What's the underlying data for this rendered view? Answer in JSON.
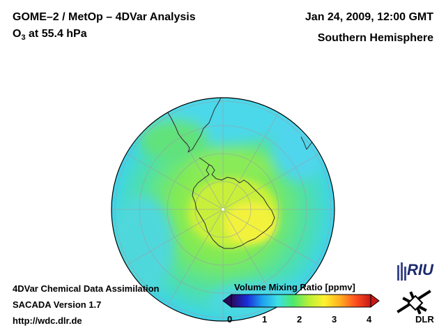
{
  "header": {
    "title": "GOME–2 / MetOp – 4DVar Analysis",
    "subtitle_species": "O",
    "subtitle_subscript": "3",
    "subtitle_level": " at 55.4 hPa",
    "datetime": "Jan 24, 2009, 12:00 GMT",
    "region": "Southern Hemisphere"
  },
  "footer": {
    "line1": "4DVar Chemical Data Assimilation",
    "line2": "SACADA Version 1.7",
    "line3": "http://wdc.dlr.de"
  },
  "colorbar": {
    "title": "Volume Mixing Ratio [ppmv]",
    "min": 0,
    "max": 4,
    "ticks": [
      "0",
      "1",
      "2",
      "3",
      "4"
    ],
    "stops": [
      "#2a0a5e",
      "#1a2cd8",
      "#1fa0f0",
      "#3de0e6",
      "#4de86a",
      "#b9ef38",
      "#fff22e",
      "#ffb020",
      "#ff5020",
      "#c81818"
    ]
  },
  "logos": {
    "riu": "RIU",
    "dlr": "DLR"
  },
  "colors": {
    "ocean_low": "#4dd6ec",
    "mid_green": "#5be86a",
    "high_yellow": "#eaf23a",
    "coast": "#2a2a2a"
  }
}
